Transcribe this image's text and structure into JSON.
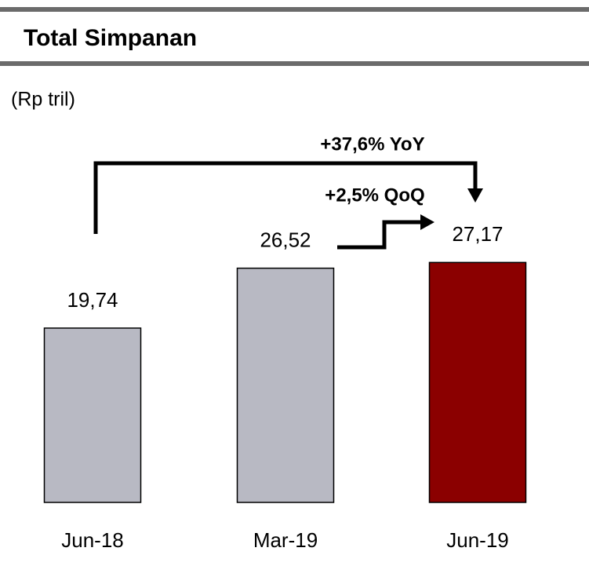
{
  "chart_data": {
    "type": "bar",
    "title": "Total Simpanan",
    "subtitle": "(Rp tril)",
    "categories": [
      "Jun-18",
      "Mar-19",
      "Jun-19"
    ],
    "values": [
      19.74,
      26.52,
      27.17
    ],
    "value_labels": [
      "19,74",
      "26,52",
      "27,17"
    ],
    "colors": [
      "#b8b9c3",
      "#b8b9c3",
      "#8b0000"
    ],
    "ylim": [
      0,
      30
    ],
    "annotations": [
      "+37,6% YoY",
      "+2,5% QoQ"
    ]
  }
}
